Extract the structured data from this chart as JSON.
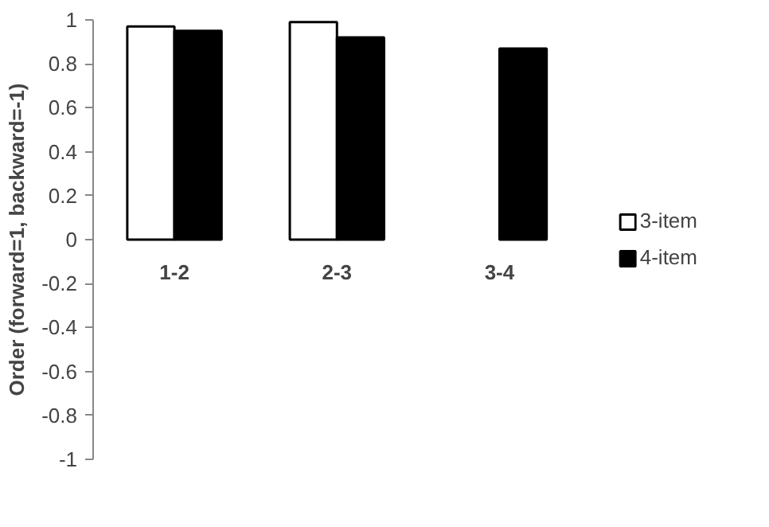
{
  "chart_data": {
    "type": "bar",
    "ylabel": "Order (forward=1, backward=-1)",
    "categories": [
      "1-2",
      "2-3",
      "3-4"
    ],
    "series": [
      {
        "name": "3-item",
        "color": "#ffffff",
        "values": [
          0.97,
          0.99,
          null
        ]
      },
      {
        "name": "4-item",
        "color": "#000000",
        "values": [
          0.95,
          0.92,
          0.87
        ]
      }
    ],
    "ylim": [
      -1,
      1
    ],
    "yticks": [
      1,
      0.8,
      0.6,
      0.4,
      0.2,
      0,
      -0.2,
      -0.4,
      -0.6,
      -0.8,
      -1
    ],
    "legend": "right"
  }
}
